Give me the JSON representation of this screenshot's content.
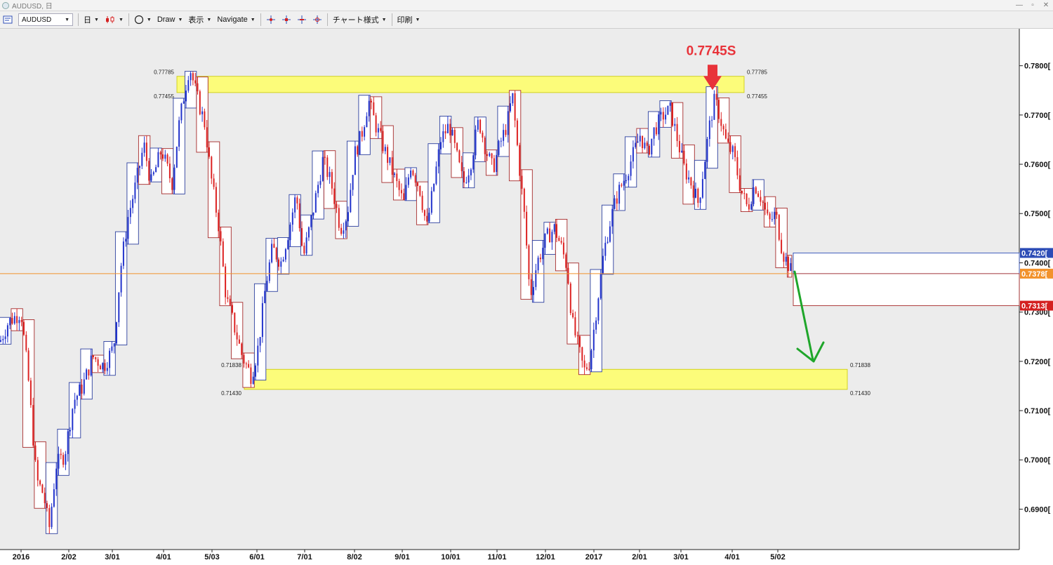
{
  "window": {
    "title": "AUDUSD, 日",
    "min_glyph": "—",
    "max_glyph": "▫",
    "close_glyph": "✕"
  },
  "toolbar": {
    "symbol": "AUDUSD",
    "timeframe": "日",
    "draw": "Draw",
    "view": "表示",
    "navigate": "Navigate",
    "chart_style": "チャート様式",
    "print": "印刷"
  },
  "chart_data": {
    "type": "candlestick",
    "symbol": "AUDUSD",
    "timeframe": "D",
    "x_labels": [
      "2016",
      "2/02",
      "3/01",
      "4/01",
      "5/03",
      "6/01",
      "7/01",
      "8/02",
      "9/01",
      "10/01",
      "11/01",
      "12/01",
      "2017",
      "2/01",
      "3/01",
      "4/01",
      "5/02"
    ],
    "y_ticks": [
      "0.7800[",
      "0.7700[",
      "0.7600[",
      "0.7500[",
      "0.7400[",
      "0.7300[",
      "0.7200[",
      "0.7100[",
      "0.7000[",
      "0.6900["
    ],
    "ylim": [
      0.6818,
      0.7875
    ],
    "price_tags": [
      {
        "label": "0.7420[",
        "value": 0.742,
        "color": "#2c4cb6"
      },
      {
        "label": "0.7378[",
        "value": 0.7378,
        "color": "#f2922b"
      },
      {
        "label": "0.7313[",
        "value": 0.7313,
        "color": "#d42020"
      }
    ],
    "zones": [
      {
        "top_label": "0.77785",
        "bottom_label": "0.77455",
        "top": 0.77785,
        "bottom": 0.77455
      },
      {
        "top_label": "0.71838",
        "bottom_label": "0.71430",
        "top": 0.71838,
        "bottom": 0.7143
      }
    ],
    "annotation": {
      "text": "0.7745S",
      "value": 0.7745,
      "color": "#e8333a"
    },
    "current_price": 0.7378,
    "path": [
      [
        0,
        0.724
      ],
      [
        12,
        0.728
      ],
      [
        30,
        0.73
      ],
      [
        40,
        0.717
      ],
      [
        52,
        0.696
      ],
      [
        62,
        0.693
      ],
      [
        70,
        0.686
      ],
      [
        80,
        0.699
      ],
      [
        92,
        0.701
      ],
      [
        105,
        0.712
      ],
      [
        118,
        0.715
      ],
      [
        132,
        0.721
      ],
      [
        148,
        0.719
      ],
      [
        162,
        0.723
      ],
      [
        172,
        0.739
      ],
      [
        182,
        0.749
      ],
      [
        192,
        0.755
      ],
      [
        205,
        0.764
      ],
      [
        215,
        0.756
      ],
      [
        230,
        0.763
      ],
      [
        245,
        0.756
      ],
      [
        255,
        0.768
      ],
      [
        262,
        0.774
      ],
      [
        270,
        0.78
      ],
      [
        280,
        0.774
      ],
      [
        292,
        0.768
      ],
      [
        300,
        0.758
      ],
      [
        312,
        0.747
      ],
      [
        322,
        0.733
      ],
      [
        332,
        0.728
      ],
      [
        345,
        0.721
      ],
      [
        358,
        0.717
      ],
      [
        368,
        0.723
      ],
      [
        378,
        0.735
      ],
      [
        388,
        0.743
      ],
      [
        400,
        0.74
      ],
      [
        412,
        0.747
      ],
      [
        422,
        0.754
      ],
      [
        432,
        0.741
      ],
      [
        448,
        0.752
      ],
      [
        460,
        0.761
      ],
      [
        472,
        0.756
      ],
      [
        485,
        0.747
      ],
      [
        495,
        0.75
      ],
      [
        505,
        0.762
      ],
      [
        515,
        0.766
      ],
      [
        525,
        0.773
      ],
      [
        535,
        0.768
      ],
      [
        545,
        0.764
      ],
      [
        555,
        0.76
      ],
      [
        565,
        0.756
      ],
      [
        575,
        0.752
      ],
      [
        585,
        0.76
      ],
      [
        598,
        0.755
      ],
      [
        608,
        0.747
      ],
      [
        618,
        0.756
      ],
      [
        628,
        0.765
      ],
      [
        640,
        0.768
      ],
      [
        650,
        0.762
      ],
      [
        660,
        0.756
      ],
      [
        670,
        0.76
      ],
      [
        682,
        0.769
      ],
      [
        692,
        0.763
      ],
      [
        702,
        0.759
      ],
      [
        712,
        0.764
      ],
      [
        722,
        0.768
      ],
      [
        730,
        0.774
      ],
      [
        738,
        0.762
      ],
      [
        748,
        0.748
      ],
      [
        755,
        0.733
      ],
      [
        765,
        0.74
      ],
      [
        778,
        0.745
      ],
      [
        790,
        0.747
      ],
      [
        800,
        0.743
      ],
      [
        808,
        0.739
      ],
      [
        815,
        0.728
      ],
      [
        825,
        0.722
      ],
      [
        832,
        0.718
      ],
      [
        840,
        0.72
      ],
      [
        850,
        0.731
      ],
      [
        860,
        0.742
      ],
      [
        870,
        0.749
      ],
      [
        880,
        0.754
      ],
      [
        892,
        0.758
      ],
      [
        902,
        0.762
      ],
      [
        912,
        0.766
      ],
      [
        922,
        0.762
      ],
      [
        932,
        0.767
      ],
      [
        945,
        0.77
      ],
      [
        955,
        0.771
      ],
      [
        965,
        0.765
      ],
      [
        975,
        0.759
      ],
      [
        985,
        0.756
      ],
      [
        995,
        0.752
      ],
      [
        1005,
        0.762
      ],
      [
        1012,
        0.769
      ],
      [
        1018,
        0.773
      ],
      [
        1025,
        0.77
      ],
      [
        1035,
        0.764
      ],
      [
        1045,
        0.762
      ],
      [
        1055,
        0.755
      ],
      [
        1065,
        0.751
      ],
      [
        1075,
        0.756
      ],
      [
        1085,
        0.753
      ],
      [
        1095,
        0.748
      ],
      [
        1105,
        0.75
      ],
      [
        1115,
        0.742
      ],
      [
        1122,
        0.74
      ],
      [
        1128,
        0.7378
      ]
    ]
  }
}
